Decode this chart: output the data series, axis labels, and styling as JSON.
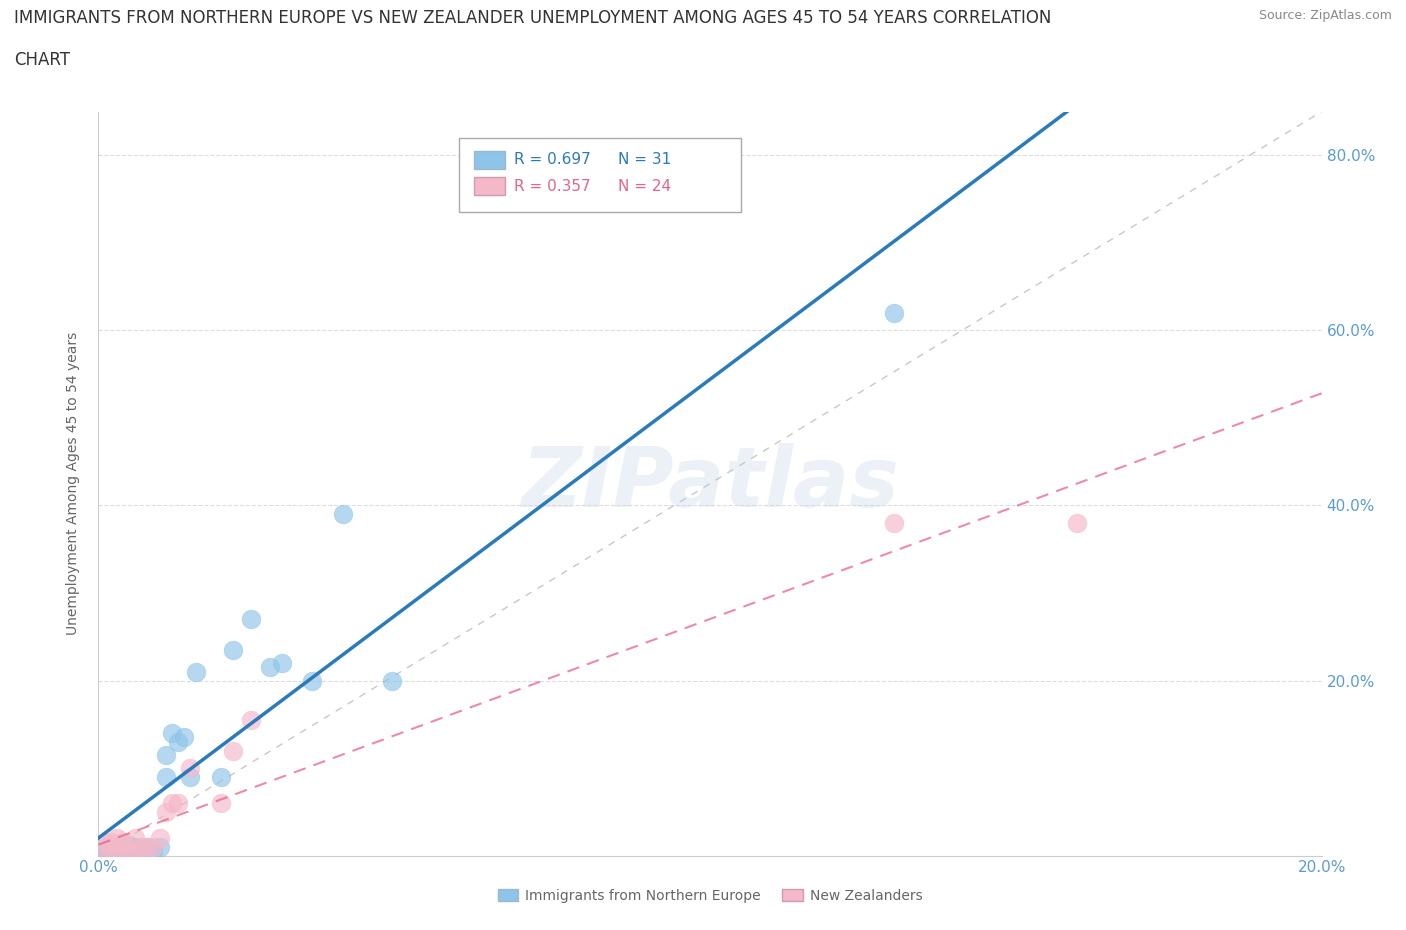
{
  "title_line1": "IMMIGRANTS FROM NORTHERN EUROPE VS NEW ZEALANDER UNEMPLOYMENT AMONG AGES 45 TO 54 YEARS CORRELATION",
  "title_line2": "CHART",
  "source": "Source: ZipAtlas.com",
  "ylabel": "Unemployment Among Ages 45 to 54 years",
  "xlim": [
    0.0,
    0.2
  ],
  "ylim": [
    0.0,
    0.85
  ],
  "yticks": [
    0.0,
    0.2,
    0.4,
    0.6,
    0.8
  ],
  "xticks": [
    0.0,
    0.025,
    0.05,
    0.075,
    0.1,
    0.125,
    0.15,
    0.175,
    0.2
  ],
  "xtick_labels": [
    "0.0%",
    "",
    "",
    "",
    "",
    "",
    "",
    "",
    "20.0%"
  ],
  "ytick_labels": [
    "",
    "20.0%",
    "40.0%",
    "60.0%",
    "80.0%"
  ],
  "blue_color": "#8ec4e8",
  "pink_color": "#f4b8c8",
  "blue_line_color": "#2b7bba",
  "pink_line_color": "#e8638a",
  "diagonal_color": "#c8c8c8",
  "legend_r_blue": "0.697",
  "legend_n_blue": "31",
  "legend_r_pink": "0.357",
  "legend_n_pink": "24",
  "watermark": "ZIPatlas",
  "blue_scatter_x": [
    0.001,
    0.001,
    0.002,
    0.002,
    0.003,
    0.003,
    0.004,
    0.005,
    0.005,
    0.006,
    0.006,
    0.007,
    0.008,
    0.009,
    0.01,
    0.011,
    0.011,
    0.012,
    0.013,
    0.014,
    0.015,
    0.016,
    0.02,
    0.022,
    0.025,
    0.028,
    0.03,
    0.035,
    0.04,
    0.048,
    0.13
  ],
  "blue_scatter_y": [
    0.005,
    0.01,
    0.005,
    0.01,
    0.005,
    0.008,
    0.005,
    0.005,
    0.012,
    0.005,
    0.01,
    0.008,
    0.01,
    0.005,
    0.01,
    0.09,
    0.115,
    0.14,
    0.13,
    0.135,
    0.09,
    0.21,
    0.09,
    0.235,
    0.27,
    0.215,
    0.22,
    0.2,
    0.39,
    0.2,
    0.62
  ],
  "pink_scatter_x": [
    0.001,
    0.001,
    0.002,
    0.002,
    0.003,
    0.003,
    0.004,
    0.004,
    0.005,
    0.006,
    0.006,
    0.007,
    0.008,
    0.009,
    0.01,
    0.011,
    0.012,
    0.013,
    0.015,
    0.02,
    0.022,
    0.025,
    0.13,
    0.16
  ],
  "pink_scatter_y": [
    0.005,
    0.015,
    0.005,
    0.015,
    0.005,
    0.02,
    0.01,
    0.015,
    0.005,
    0.005,
    0.02,
    0.01,
    0.01,
    0.01,
    0.02,
    0.05,
    0.06,
    0.06,
    0.1,
    0.06,
    0.12,
    0.155,
    0.38,
    0.38
  ],
  "grid_color": "#dddddd",
  "background_color": "#ffffff",
  "title_color": "#333333",
  "axis_label_color": "#666666",
  "tick_label_color": "#5b9bd5",
  "source_color": "#888888",
  "legend_label_blue": "Immigrants from Northern Europe",
  "legend_label_pink": "New Zealanders"
}
